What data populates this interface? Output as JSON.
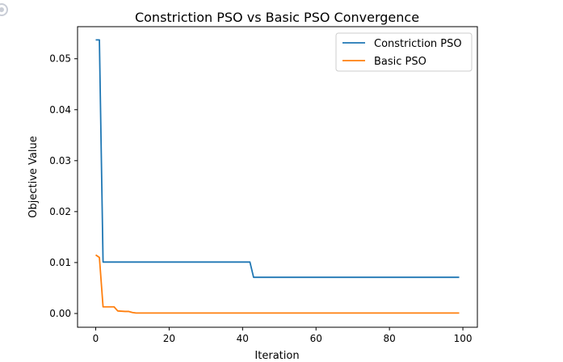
{
  "chart_data": {
    "type": "line",
    "title": "Constriction PSO vs Basic PSO Convergence",
    "xlabel": "Iteration",
    "ylabel": "Objective Value",
    "xlim": [
      -4.95,
      103.95
    ],
    "ylim": [
      -0.0027,
      0.0563
    ],
    "xticks": [
      0,
      20,
      40,
      60,
      80,
      100
    ],
    "xtick_labels": [
      "0",
      "20",
      "40",
      "60",
      "80",
      "100"
    ],
    "yticks": [
      0.0,
      0.01,
      0.02,
      0.03,
      0.04,
      0.05
    ],
    "ytick_labels": [
      "0.00",
      "0.01",
      "0.02",
      "0.03",
      "0.04",
      "0.05"
    ],
    "grid": false,
    "legend_position": "top-right",
    "series": [
      {
        "name": "Constriction PSO",
        "color": "#1f77b4",
        "points": [
          [
            0,
            0.0537
          ],
          [
            1,
            0.0537
          ],
          [
            2,
            0.0101
          ],
          [
            42,
            0.0101
          ],
          [
            43,
            0.0071
          ],
          [
            99,
            0.0071
          ]
        ]
      },
      {
        "name": "Basic PSO",
        "color": "#ff7f0e",
        "points": [
          [
            0,
            0.0115
          ],
          [
            1,
            0.011
          ],
          [
            2,
            0.0013
          ],
          [
            5,
            0.0013
          ],
          [
            6,
            0.0005
          ],
          [
            8,
            0.0004
          ],
          [
            9,
            0.0004
          ],
          [
            10,
            0.0002
          ],
          [
            11,
            0.0001
          ],
          [
            99,
            0.0001
          ]
        ]
      }
    ]
  }
}
